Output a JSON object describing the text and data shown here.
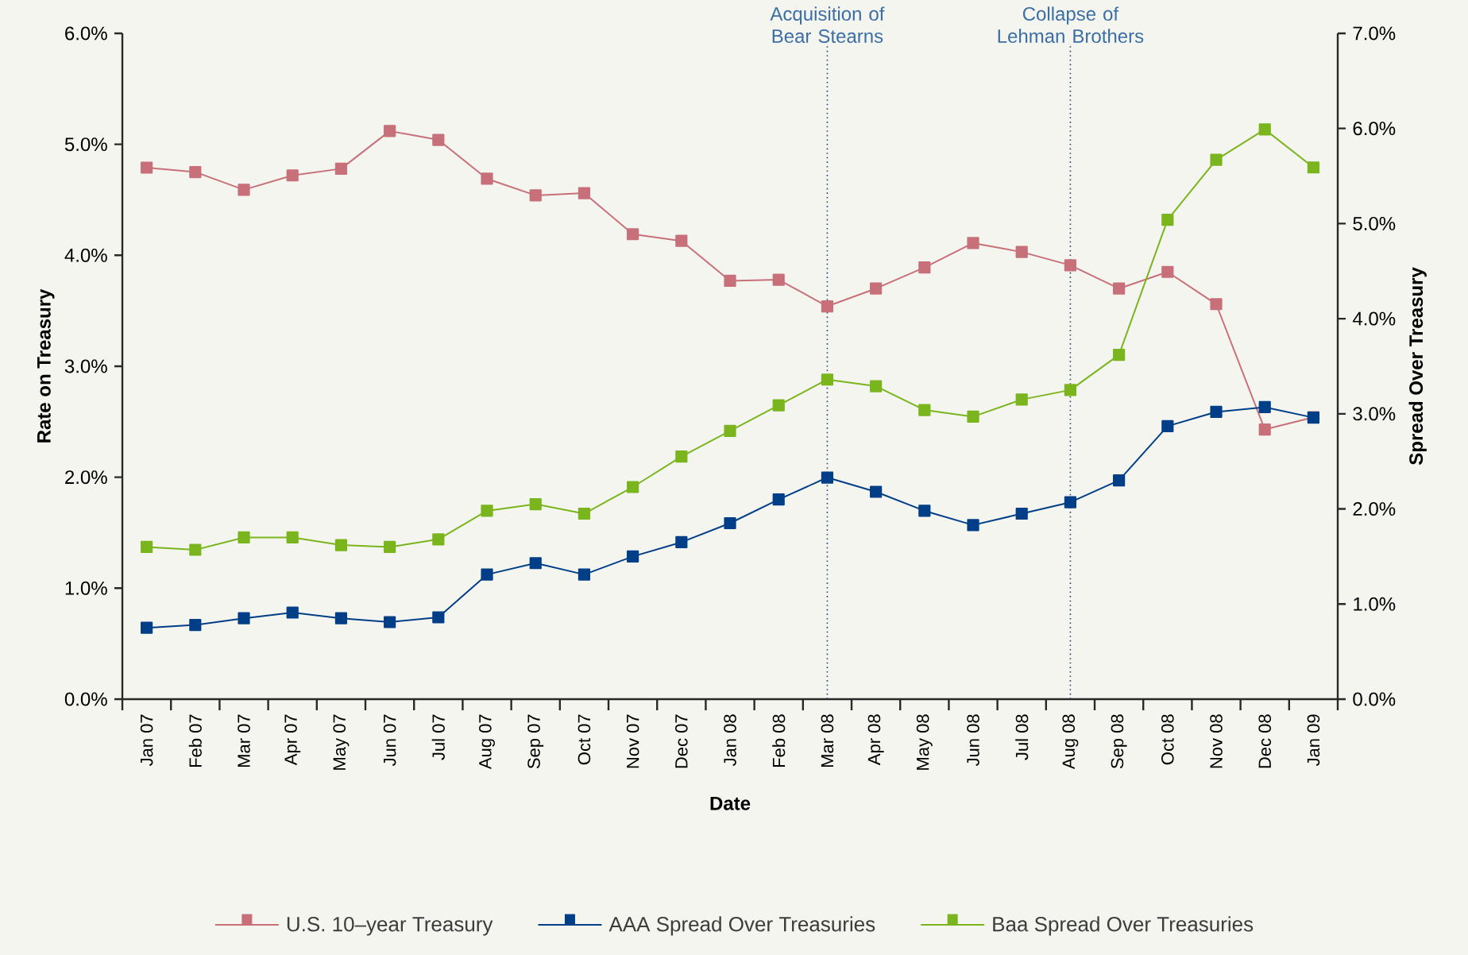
{
  "chart_data": {
    "type": "line",
    "categories": [
      "Jan 07",
      "Feb 07",
      "Mar 07",
      "Apr 07",
      "May 07",
      "Jun 07",
      "Jul 07",
      "Aug 07",
      "Sep 07",
      "Oct 07",
      "Nov 07",
      "Dec 07",
      "Jan 08",
      "Feb 08",
      "Mar 08",
      "Apr 08",
      "May 08",
      "Jun 08",
      "Jul 08",
      "Aug 08",
      "Sep 08",
      "Oct 08",
      "Nov 08",
      "Dec 08",
      "Jan 09"
    ],
    "series": [
      {
        "name": "U.S. 10–year Treasury",
        "color": "#c8707a",
        "values": [
          4.79,
          4.75,
          4.59,
          4.72,
          4.78,
          5.12,
          5.04,
          4.69,
          4.54,
          4.56,
          4.19,
          4.13,
          3.77,
          3.78,
          3.54,
          3.7,
          3.89,
          4.11,
          4.03,
          3.91,
          3.7,
          3.85,
          3.56,
          2.43,
          2.54
        ]
      },
      {
        "name": "AAA Spread Over Treasuries",
        "color": "#003f87",
        "axis": "y2",
        "values": [
          0.75,
          0.78,
          0.85,
          0.91,
          0.85,
          0.81,
          0.86,
          1.31,
          1.43,
          1.31,
          1.5,
          1.65,
          1.85,
          2.1,
          2.33,
          2.18,
          1.98,
          1.83,
          1.95,
          2.07,
          2.3,
          2.87,
          3.02,
          3.07,
          2.96
        ]
      },
      {
        "name": "Baa Spread Over Treasuries",
        "color": "#7ab51d",
        "axis": "y2",
        "values": [
          1.6,
          1.57,
          1.7,
          1.7,
          1.62,
          1.6,
          1.68,
          1.98,
          2.05,
          1.95,
          2.23,
          2.55,
          2.82,
          3.09,
          3.36,
          3.29,
          3.04,
          2.97,
          3.15,
          3.25,
          3.62,
          5.04,
          5.67,
          5.99,
          5.59
        ]
      }
    ],
    "xlabel": "Date",
    "ylabel": "Rate on Treasury",
    "y2label": "Spread Over Treasury",
    "ylim": [
      0,
      6
    ],
    "yticks": [
      {
        "value": 0,
        "label": "0.0%"
      },
      {
        "value": 1,
        "label": "1.0%"
      },
      {
        "value": 2,
        "label": "2.0%"
      },
      {
        "value": 3,
        "label": "3.0%"
      },
      {
        "value": 4,
        "label": "4.0%"
      },
      {
        "value": 5,
        "label": "5.0%"
      },
      {
        "value": 6,
        "label": "6.0%"
      }
    ],
    "y2lim": [
      0,
      7
    ],
    "y2ticks": [
      {
        "value": 0,
        "label": "0.0%"
      },
      {
        "value": 1,
        "label": "1.0%"
      },
      {
        "value": 2,
        "label": "2.0%"
      },
      {
        "value": 3,
        "label": "3.0%"
      },
      {
        "value": 4,
        "label": "4.0%"
      },
      {
        "value": 5,
        "label": "5.0%"
      },
      {
        "value": 6,
        "label": "6.0%"
      },
      {
        "value": 7,
        "label": "7.0%"
      }
    ],
    "ref_lines": [
      {
        "axis": "x",
        "value": "Mar 08",
        "label": "Acquisition of Bear Stearns",
        "color": "#1f3f7a",
        "line_style": "dotted"
      },
      {
        "axis": "x",
        "value": "Aug 08",
        "label": "Collapse of Lehman Brothers",
        "color": "#1f3f7a",
        "line_style": "dotted"
      }
    ],
    "marker": "square",
    "line_style": "solid",
    "grid": false,
    "legend": "bottom"
  }
}
